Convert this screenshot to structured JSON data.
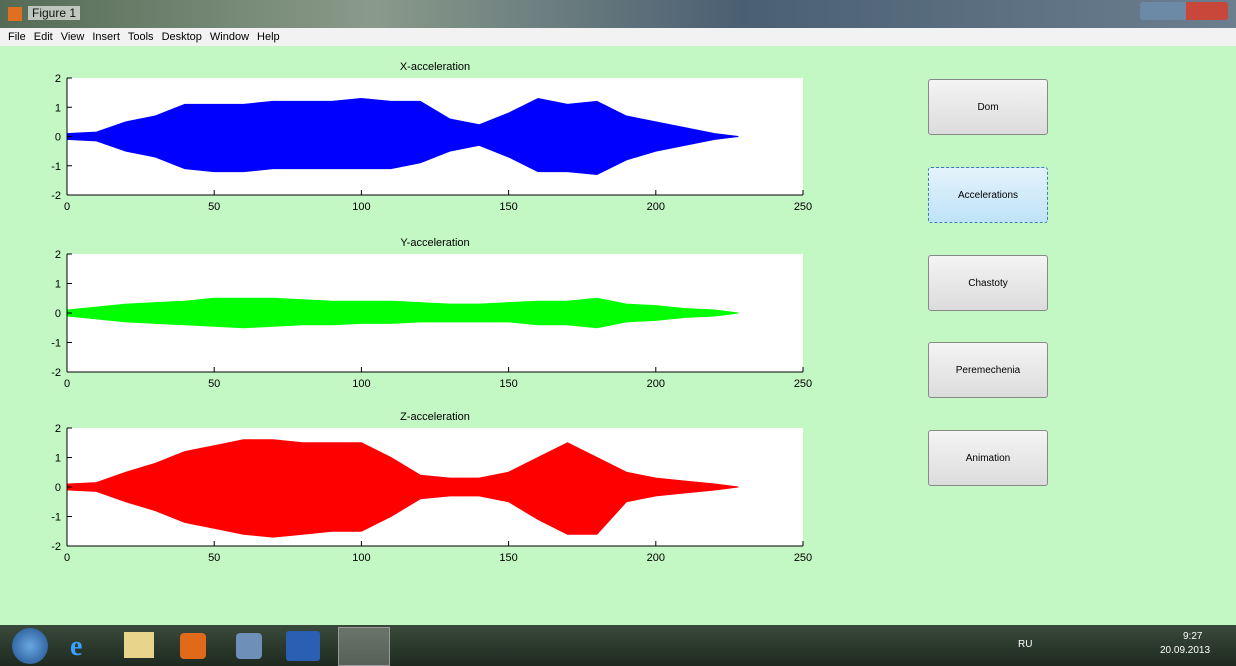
{
  "window": {
    "title": "Figure 1",
    "menu": [
      "File",
      "Edit",
      "View",
      "Insert",
      "Tools",
      "Desktop",
      "Window",
      "Help"
    ]
  },
  "chart_data": [
    {
      "type": "area",
      "title": "X-acceleration",
      "color": "#0000ff",
      "x": [
        0,
        10,
        20,
        30,
        40,
        50,
        60,
        70,
        80,
        90,
        100,
        110,
        120,
        130,
        140,
        150,
        160,
        170,
        180,
        190,
        200,
        210,
        220,
        228
      ],
      "upper": [
        0.1,
        0.15,
        0.5,
        0.7,
        1.1,
        1.1,
        1.1,
        1.2,
        1.2,
        1.2,
        1.3,
        1.2,
        1.2,
        0.6,
        0.4,
        0.8,
        1.3,
        1.1,
        1.2,
        0.7,
        0.5,
        0.3,
        0.1,
        0
      ],
      "lower": [
        -0.1,
        -0.15,
        -0.5,
        -0.7,
        -1.1,
        -1.2,
        -1.2,
        -1.1,
        -1.1,
        -1.1,
        -1.1,
        -1.1,
        -0.9,
        -0.5,
        -0.3,
        -0.7,
        -1.2,
        -1.2,
        -1.3,
        -0.8,
        -0.5,
        -0.3,
        -0.1,
        0
      ],
      "xlim": [
        0,
        250
      ],
      "ylim": [
        -2,
        2
      ],
      "xticks": [
        0,
        50,
        100,
        150,
        200,
        250
      ],
      "yticks": [
        -2,
        -1,
        0,
        1,
        2
      ]
    },
    {
      "type": "area",
      "title": "Y-acceleration",
      "color": "#00ff00",
      "x": [
        0,
        10,
        20,
        30,
        40,
        50,
        60,
        70,
        80,
        90,
        100,
        110,
        120,
        130,
        140,
        150,
        160,
        170,
        180,
        190,
        200,
        210,
        220,
        228
      ],
      "upper": [
        0.1,
        0.2,
        0.3,
        0.35,
        0.4,
        0.5,
        0.5,
        0.5,
        0.45,
        0.4,
        0.4,
        0.4,
        0.35,
        0.3,
        0.3,
        0.35,
        0.4,
        0.4,
        0.5,
        0.3,
        0.25,
        0.15,
        0.1,
        0
      ],
      "lower": [
        -0.1,
        -0.2,
        -0.3,
        -0.35,
        -0.4,
        -0.45,
        -0.5,
        -0.45,
        -0.4,
        -0.4,
        -0.35,
        -0.35,
        -0.3,
        -0.3,
        -0.3,
        -0.3,
        -0.4,
        -0.4,
        -0.5,
        -0.3,
        -0.25,
        -0.15,
        -0.1,
        0
      ],
      "xlim": [
        0,
        250
      ],
      "ylim": [
        -2,
        2
      ],
      "xticks": [
        0,
        50,
        100,
        150,
        200,
        250
      ],
      "yticks": [
        -2,
        -1,
        0,
        1,
        2
      ]
    },
    {
      "type": "area",
      "title": "Z-acceleration",
      "color": "#ff0000",
      "x": [
        0,
        10,
        20,
        30,
        40,
        50,
        60,
        70,
        80,
        90,
        100,
        110,
        120,
        130,
        140,
        150,
        160,
        170,
        180,
        190,
        200,
        210,
        220,
        228
      ],
      "upper": [
        0.1,
        0.15,
        0.5,
        0.8,
        1.2,
        1.4,
        1.6,
        1.6,
        1.5,
        1.5,
        1.5,
        1.0,
        0.4,
        0.3,
        0.3,
        0.5,
        1.0,
        1.5,
        1.0,
        0.5,
        0.3,
        0.2,
        0.1,
        0
      ],
      "lower": [
        -0.1,
        -0.15,
        -0.5,
        -0.8,
        -1.2,
        -1.4,
        -1.6,
        -1.7,
        -1.6,
        -1.5,
        -1.5,
        -1.0,
        -0.4,
        -0.3,
        -0.3,
        -0.5,
        -1.1,
        -1.6,
        -1.6,
        -0.5,
        -0.3,
        -0.2,
        -0.1,
        0
      ],
      "xlim": [
        0,
        250
      ],
      "ylim": [
        -2,
        2
      ],
      "xticks": [
        0,
        50,
        100,
        150,
        200,
        250
      ],
      "yticks": [
        -2,
        -1,
        0,
        1,
        2
      ]
    }
  ],
  "buttons": [
    "Dom",
    "Accelerations",
    "Chastoty",
    "Peremechenia",
    "Animation"
  ],
  "taskbar": {
    "language": "RU",
    "time": "9:27",
    "date": "20.09.2013"
  }
}
